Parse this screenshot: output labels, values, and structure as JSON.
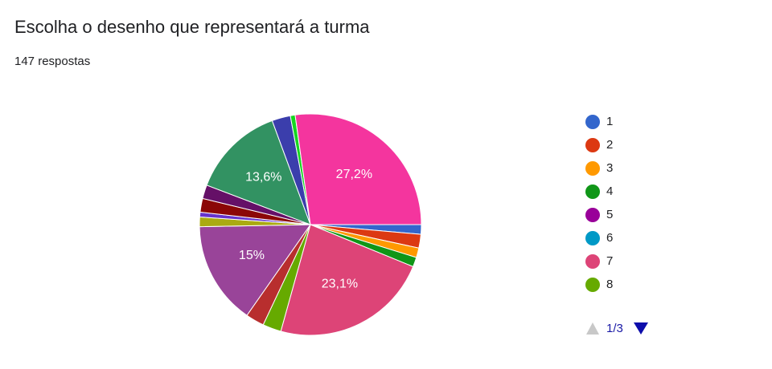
{
  "chart_data": {
    "type": "pie",
    "title": "Escolha o desenho que representará a turma",
    "subtitle": "147 respostas",
    "categories": [
      "1",
      "2",
      "3",
      "4",
      "5",
      "6",
      "7",
      "8",
      null,
      null,
      null,
      null,
      null,
      null,
      null,
      null,
      null,
      null,
      null,
      null,
      null,
      null,
      null,
      null
    ],
    "values": [
      1.4,
      2,
      1.4,
      1.4,
      0,
      0,
      23.1,
      2.7,
      2.7,
      0,
      15,
      0,
      1.4,
      0.7,
      0,
      2,
      2,
      13.6,
      0,
      2.7,
      0,
      0.7,
      0,
      27.2
    ],
    "value_labels": [
      null,
      null,
      null,
      null,
      null,
      null,
      "23,1%",
      null,
      null,
      null,
      "15%",
      null,
      null,
      null,
      null,
      null,
      null,
      "13,6%",
      null,
      null,
      null,
      null,
      null,
      "27,2%"
    ],
    "colors": [
      "#3366cc",
      "#dc3912",
      "#ff9900",
      "#109618",
      "#990099",
      "#0099c6",
      "#dd4477",
      "#66aa00",
      "#b82e2e",
      "#316395",
      "#994499",
      "#22aa99",
      "#aaaa11",
      "#6633cc",
      "#e67300",
      "#8b0707",
      "#651067",
      "#329262",
      "#5574a6",
      "#3b3eac",
      "#b77322",
      "#16d620",
      "#b91383",
      "#f4359e"
    ],
    "legend_page": "1/3"
  }
}
